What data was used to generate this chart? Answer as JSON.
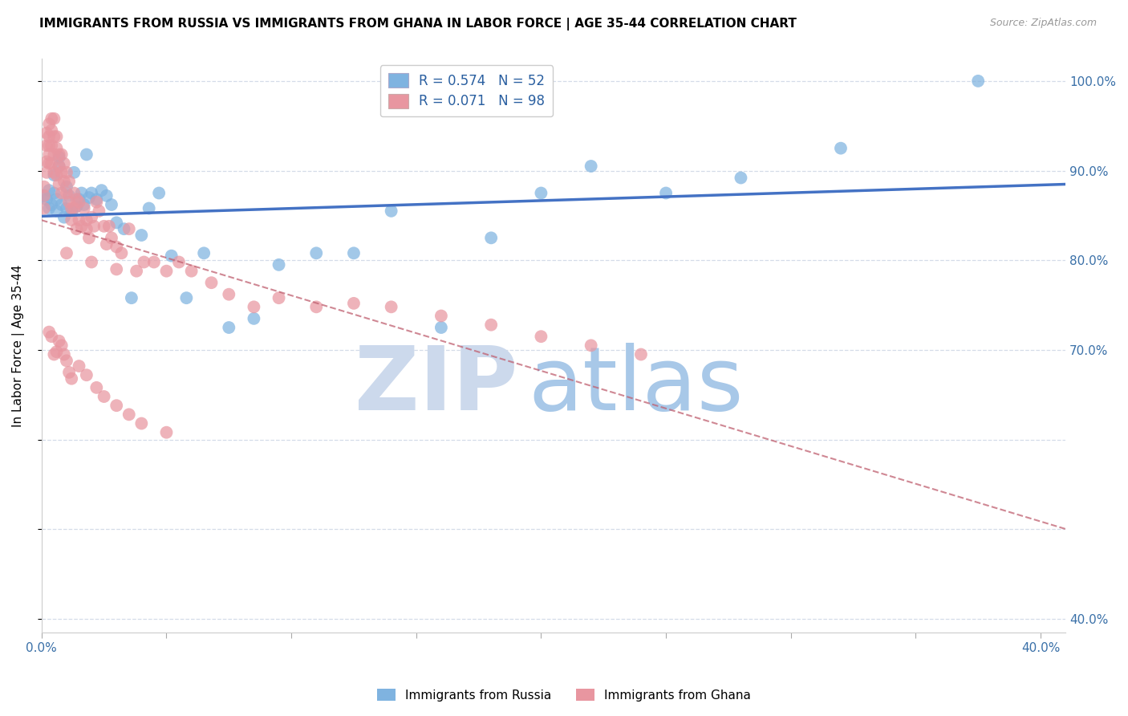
{
  "title": "IMMIGRANTS FROM RUSSIA VS IMMIGRANTS FROM GHANA IN LABOR FORCE | AGE 35-44 CORRELATION CHART",
  "source": "Source: ZipAtlas.com",
  "ylabel": "In Labor Force | Age 35-44",
  "xlim": [
    0.0,
    0.41
  ],
  "ylim": [
    0.385,
    1.025
  ],
  "xtick_positions": [
    0.0,
    0.05,
    0.1,
    0.15,
    0.2,
    0.25,
    0.3,
    0.35,
    0.4
  ],
  "ytick_positions": [
    0.4,
    0.5,
    0.6,
    0.7,
    0.8,
    0.9,
    1.0
  ],
  "ytick_labels": [
    "40.0%",
    "",
    "",
    "70.0%",
    "80.0%",
    "90.0%",
    "100.0%"
  ],
  "russia_R": "0.574",
  "russia_N": "52",
  "ghana_R": "0.071",
  "ghana_N": "98",
  "russia_color": "#7fb3e0",
  "ghana_color": "#e896a0",
  "russia_line_color": "#4472c4",
  "ghana_line_color": "#c06070",
  "grid_color": "#d4dce8",
  "watermark_zip_color": "#ccd9ec",
  "watermark_atlas_color": "#a8c8e8",
  "russia_x": [
    0.001,
    0.002,
    0.003,
    0.003,
    0.004,
    0.005,
    0.005,
    0.006,
    0.006,
    0.007,
    0.007,
    0.008,
    0.009,
    0.01,
    0.01,
    0.011,
    0.012,
    0.013,
    0.014,
    0.015,
    0.016,
    0.017,
    0.018,
    0.019,
    0.02,
    0.022,
    0.024,
    0.026,
    0.028,
    0.03,
    0.033,
    0.036,
    0.04,
    0.043,
    0.047,
    0.052,
    0.058,
    0.065,
    0.075,
    0.085,
    0.095,
    0.11,
    0.125,
    0.14,
    0.16,
    0.18,
    0.2,
    0.22,
    0.25,
    0.28,
    0.32,
    0.375
  ],
  "russia_y": [
    0.872,
    0.868,
    0.878,
    0.858,
    0.862,
    0.895,
    0.875,
    0.868,
    0.855,
    0.915,
    0.905,
    0.862,
    0.848,
    0.882,
    0.858,
    0.872,
    0.855,
    0.898,
    0.86,
    0.868,
    0.875,
    0.862,
    0.918,
    0.87,
    0.875,
    0.868,
    0.878,
    0.872,
    0.862,
    0.842,
    0.835,
    0.758,
    0.828,
    0.858,
    0.875,
    0.805,
    0.758,
    0.808,
    0.725,
    0.735,
    0.795,
    0.808,
    0.808,
    0.855,
    0.725,
    0.825,
    0.875,
    0.905,
    0.875,
    0.892,
    0.925,
    1.0
  ],
  "ghana_x": [
    0.001,
    0.001,
    0.001,
    0.002,
    0.002,
    0.002,
    0.002,
    0.003,
    0.003,
    0.003,
    0.003,
    0.003,
    0.004,
    0.004,
    0.004,
    0.004,
    0.005,
    0.005,
    0.005,
    0.005,
    0.006,
    0.006,
    0.006,
    0.007,
    0.007,
    0.007,
    0.008,
    0.008,
    0.008,
    0.009,
    0.009,
    0.01,
    0.01,
    0.011,
    0.011,
    0.012,
    0.012,
    0.013,
    0.013,
    0.014,
    0.014,
    0.015,
    0.015,
    0.016,
    0.017,
    0.018,
    0.018,
    0.019,
    0.02,
    0.021,
    0.022,
    0.023,
    0.025,
    0.026,
    0.027,
    0.028,
    0.03,
    0.032,
    0.035,
    0.038,
    0.041,
    0.045,
    0.05,
    0.055,
    0.06,
    0.068,
    0.075,
    0.085,
    0.095,
    0.11,
    0.125,
    0.14,
    0.16,
    0.18,
    0.2,
    0.22,
    0.24,
    0.01,
    0.02,
    0.03,
    0.003,
    0.004,
    0.005,
    0.006,
    0.007,
    0.008,
    0.009,
    0.01,
    0.011,
    0.012,
    0.015,
    0.018,
    0.022,
    0.025,
    0.03,
    0.035,
    0.04,
    0.05
  ],
  "ghana_y": [
    0.882,
    0.872,
    0.858,
    0.942,
    0.928,
    0.91,
    0.898,
    0.952,
    0.938,
    0.928,
    0.918,
    0.908,
    0.958,
    0.945,
    0.928,
    0.908,
    0.958,
    0.938,
    0.918,
    0.898,
    0.938,
    0.925,
    0.895,
    0.918,
    0.905,
    0.885,
    0.918,
    0.898,
    0.875,
    0.908,
    0.888,
    0.898,
    0.875,
    0.888,
    0.865,
    0.858,
    0.845,
    0.875,
    0.858,
    0.868,
    0.835,
    0.865,
    0.845,
    0.838,
    0.858,
    0.845,
    0.835,
    0.825,
    0.848,
    0.838,
    0.865,
    0.855,
    0.838,
    0.818,
    0.838,
    0.825,
    0.815,
    0.808,
    0.835,
    0.788,
    0.798,
    0.798,
    0.788,
    0.798,
    0.788,
    0.775,
    0.762,
    0.748,
    0.758,
    0.748,
    0.752,
    0.748,
    0.738,
    0.728,
    0.715,
    0.705,
    0.695,
    0.808,
    0.798,
    0.79,
    0.72,
    0.715,
    0.695,
    0.698,
    0.71,
    0.705,
    0.695,
    0.688,
    0.675,
    0.668,
    0.682,
    0.672,
    0.658,
    0.648,
    0.638,
    0.628,
    0.618,
    0.608
  ]
}
